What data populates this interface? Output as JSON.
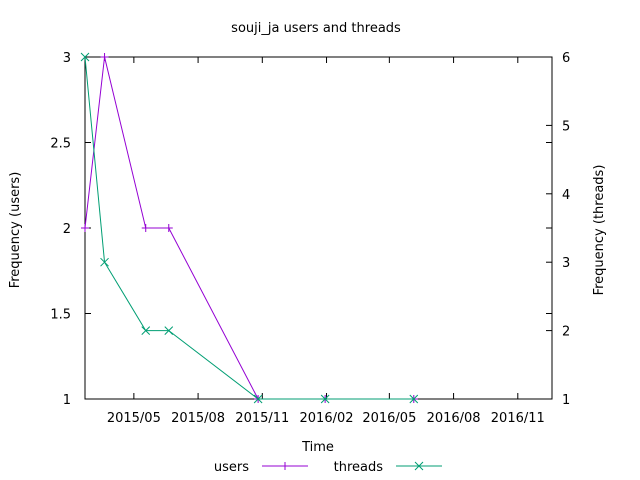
{
  "chart_data": {
    "type": "line",
    "title": "souji_ja users and threads",
    "xlabel": "Time",
    "ylabel_left": "Frequency (users)",
    "ylabel_right": "Frequency (threads)",
    "x_range": [
      "2015-02-20",
      "2016-12-20"
    ],
    "x_ticks": [
      {
        "date": "2015-05-01",
        "label": "2015/05"
      },
      {
        "date": "2015-08-01",
        "label": "2015/08"
      },
      {
        "date": "2015-11-01",
        "label": "2015/11"
      },
      {
        "date": "2016-02-01",
        "label": "2016/02"
      },
      {
        "date": "2016-05-01",
        "label": "2016/05"
      },
      {
        "date": "2016-08-01",
        "label": "2016/08"
      },
      {
        "date": "2016-11-01",
        "label": "2016/11"
      }
    ],
    "y_left": {
      "min": 1,
      "max": 3,
      "ticks": [
        "1",
        "1.5",
        "2",
        "2.5",
        "3"
      ]
    },
    "y_right": {
      "min": 1,
      "max": 6,
      "ticks": [
        "1",
        "2",
        "3",
        "4",
        "5",
        "6"
      ]
    },
    "grid": false,
    "legend_placement": "bottom",
    "series": [
      {
        "name": "users",
        "axis": "left",
        "color": "#9400d3",
        "marker": "+",
        "points": [
          {
            "x": "2015-02-20",
            "y": 2
          },
          {
            "x": "2015-03-20",
            "y": 3
          },
          {
            "x": "2015-05-18",
            "y": 2
          },
          {
            "x": "2015-06-20",
            "y": 2
          },
          {
            "x": "2015-10-26",
            "y": 1
          },
          {
            "x": "2016-01-30",
            "y": 1
          },
          {
            "x": "2016-06-05",
            "y": 1
          }
        ]
      },
      {
        "name": "threads",
        "axis": "right",
        "color": "#009e73",
        "marker": "x",
        "points": [
          {
            "x": "2015-02-20",
            "y": 6
          },
          {
            "x": "2015-03-20",
            "y": 3
          },
          {
            "x": "2015-05-18",
            "y": 2
          },
          {
            "x": "2015-06-20",
            "y": 2
          },
          {
            "x": "2015-10-26",
            "y": 1
          },
          {
            "x": "2016-01-30",
            "y": 1
          },
          {
            "x": "2016-06-05",
            "y": 1
          }
        ]
      }
    ]
  }
}
